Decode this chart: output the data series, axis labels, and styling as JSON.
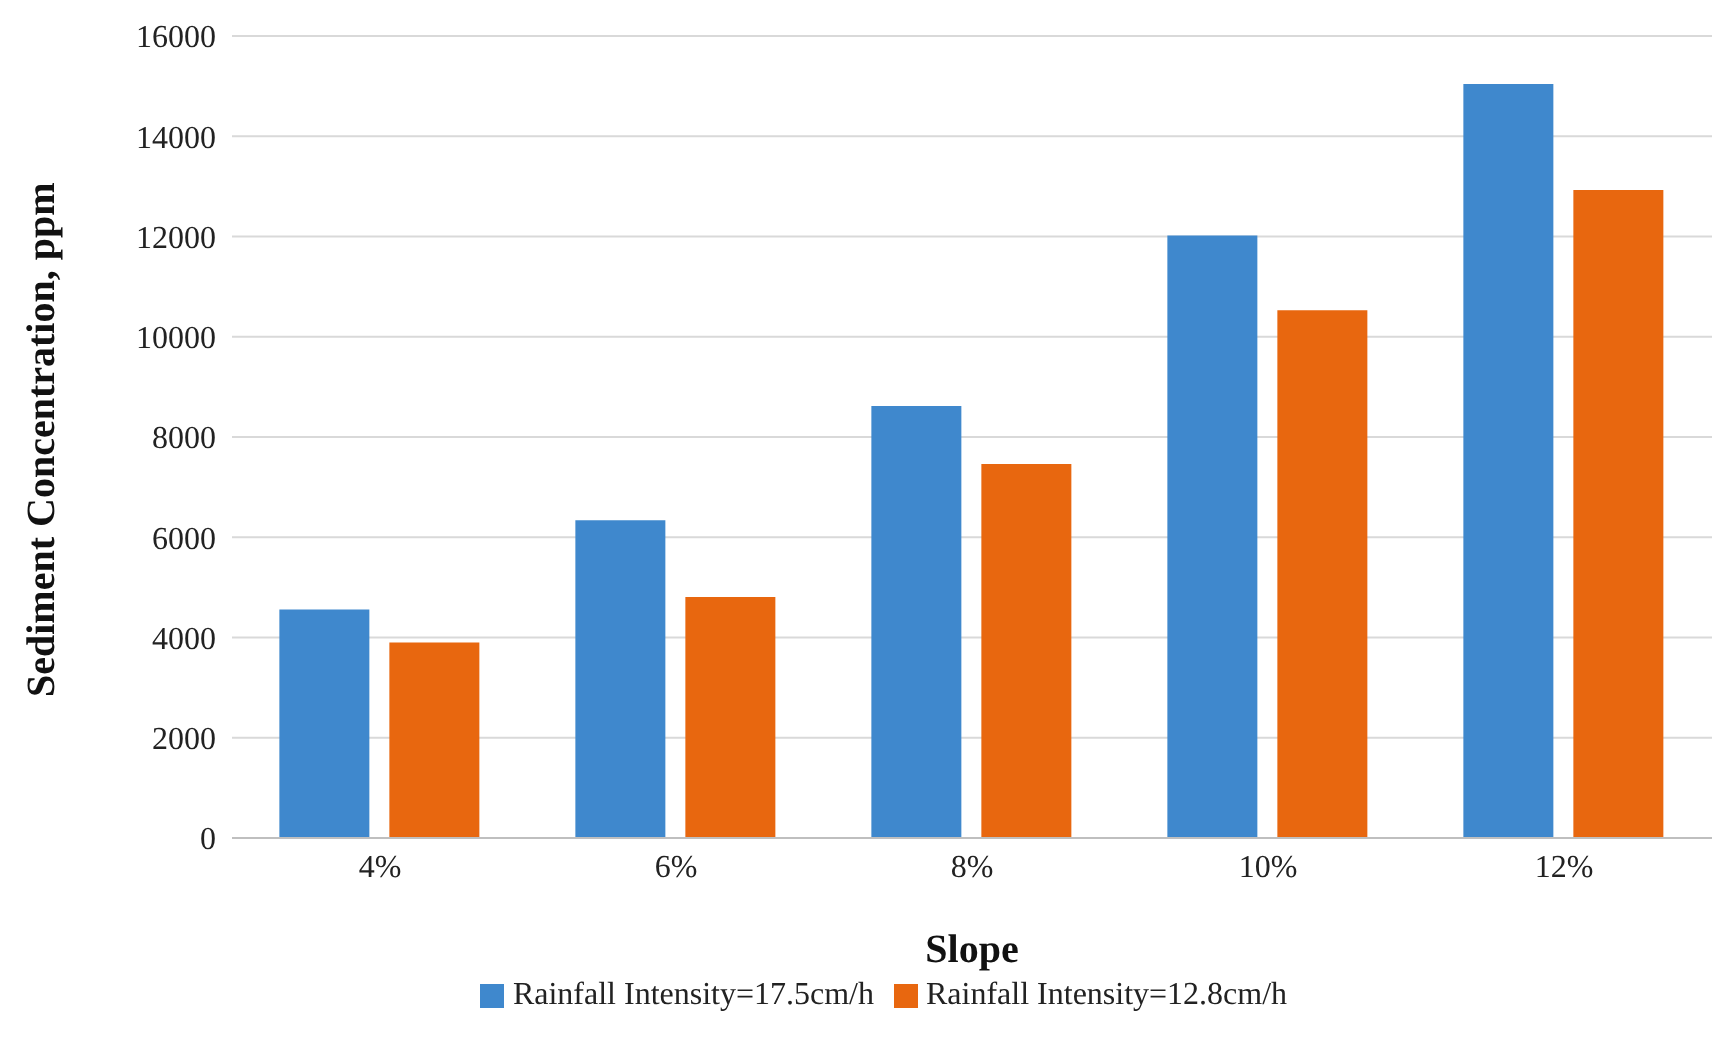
{
  "chart_data": {
    "type": "bar",
    "xlabel": "Slope",
    "ylabel": "Sediment Concentration, ppm",
    "categories": [
      "4%",
      "6%",
      "8%",
      "10%",
      "12%"
    ],
    "series": [
      {
        "name": "Rainfall Intensity=17.5cm/h",
        "color": "#3f88cd",
        "values": [
          4560,
          6340,
          8620,
          12020,
          15040
        ]
      },
      {
        "name": "Rainfall Intensity=12.8cm/h",
        "color": "#e8670f",
        "values": [
          3900,
          4810,
          7460,
          10530,
          12930
        ]
      }
    ],
    "ylim": [
      0,
      16000
    ],
    "yticks": [
      0,
      2000,
      4000,
      6000,
      8000,
      10000,
      12000,
      14000,
      16000
    ],
    "grid": "y",
    "legend": "bottom"
  }
}
